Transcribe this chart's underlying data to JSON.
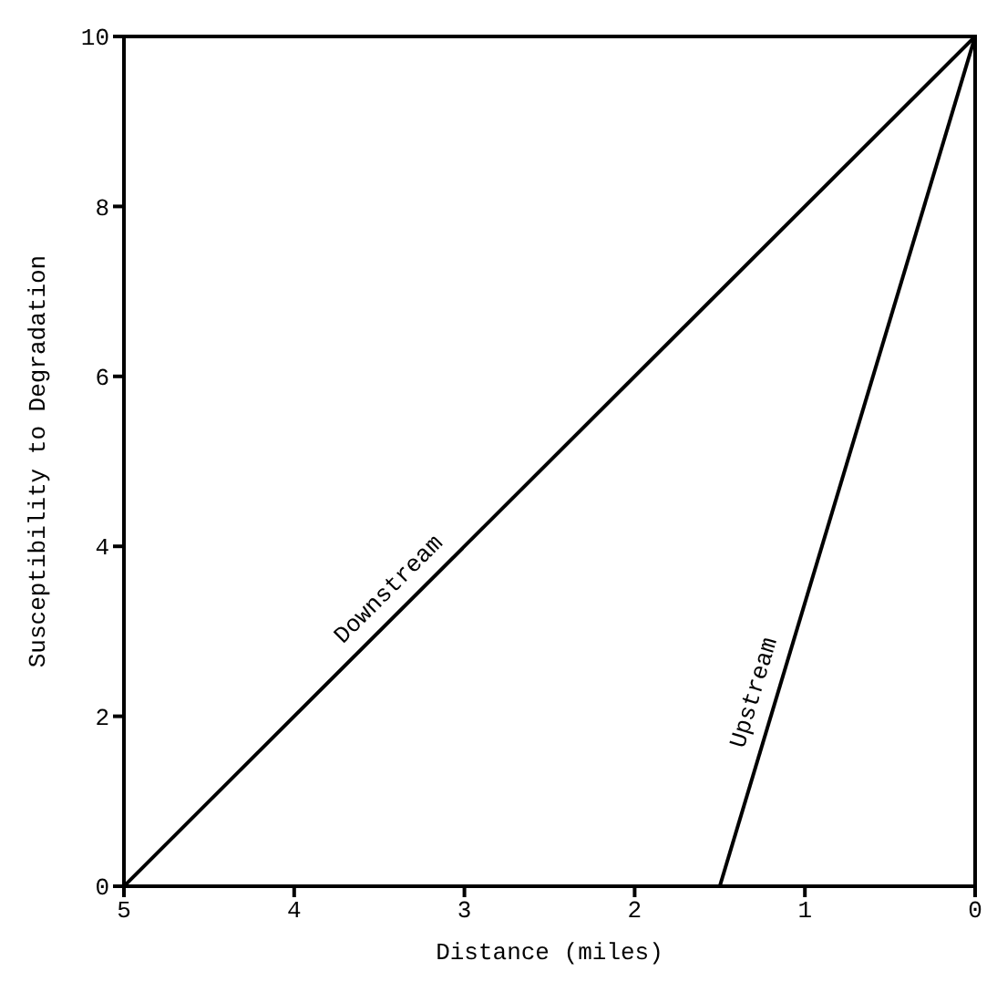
{
  "chart_data": {
    "type": "line",
    "xlabel": "Distance (miles)",
    "ylabel": "Susceptibility to Degradation",
    "xlim": [
      5,
      0
    ],
    "xticks": [
      5,
      4,
      3,
      2,
      1,
      0
    ],
    "ylim": [
      0,
      10
    ],
    "yticks": [
      0,
      2,
      4,
      6,
      8,
      10
    ],
    "marker": "none",
    "line_style": "solid",
    "series": [
      {
        "name": "Downstream",
        "color": "#000000",
        "x": [
          5,
          0
        ],
        "values": [
          0,
          10
        ]
      },
      {
        "name": "Upstream",
        "color": "#000000",
        "x": [
          1.5,
          0
        ],
        "values": [
          0,
          10
        ]
      }
    ]
  }
}
